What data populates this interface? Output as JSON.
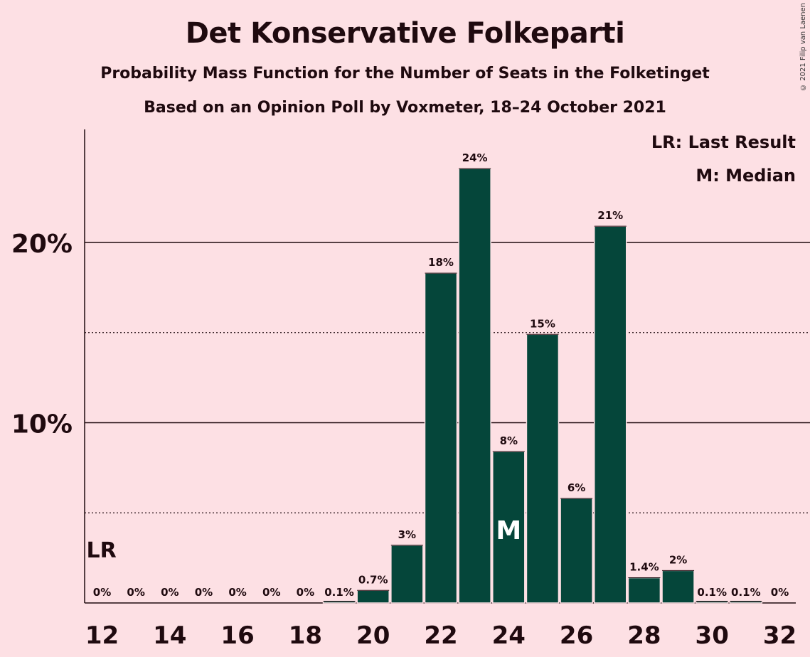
{
  "header": {
    "title": "Det Konservative Folkeparti",
    "subtitle": "Probability Mass Function for the Number of Seats in the Folketinget",
    "source": "Based on an Opinion Poll by Voxmeter, 18–24 October 2021",
    "copyright": "© 2021 Filip van Laenen"
  },
  "legend": {
    "last_result": "LR: Last Result",
    "median": "M: Median"
  },
  "colors": {
    "background": "#fde0e4",
    "bar": "#05463a",
    "text": "#1f0a0f"
  },
  "chart_data": {
    "type": "bar",
    "title": "Det Konservative Folkeparti",
    "xlabel": "",
    "ylabel": "",
    "categories": [
      12,
      13,
      14,
      15,
      16,
      17,
      18,
      19,
      20,
      21,
      22,
      23,
      24,
      25,
      26,
      27,
      28,
      29,
      30,
      31,
      32
    ],
    "values": [
      0,
      0,
      0,
      0,
      0,
      0,
      0,
      0.1,
      0.7,
      3.2,
      18.3,
      24.1,
      8.4,
      14.9,
      5.8,
      20.9,
      1.4,
      1.8,
      0.1,
      0.1,
      0
    ],
    "value_labels": [
      "0%",
      "0%",
      "0%",
      "0%",
      "0%",
      "0%",
      "0%",
      "0.1%",
      "0.7%",
      "3%",
      "18%",
      "24%",
      "8%",
      "15%",
      "6%",
      "21%",
      "1.4%",
      "2%",
      "0.1%",
      "0.1%",
      "0%"
    ],
    "x_tick_labels": [
      "12",
      "14",
      "16",
      "18",
      "20",
      "22",
      "24",
      "26",
      "28",
      "30",
      "32"
    ],
    "y_tick_labels": [
      "10%",
      "20%"
    ],
    "ylim": [
      0,
      26
    ],
    "grid": {
      "solid": [
        10,
        20
      ],
      "dotted": [
        5,
        15
      ]
    },
    "last_result": 12,
    "last_result_label": "LR",
    "median": 24,
    "median_label": "M",
    "legend_position": "top-right"
  }
}
